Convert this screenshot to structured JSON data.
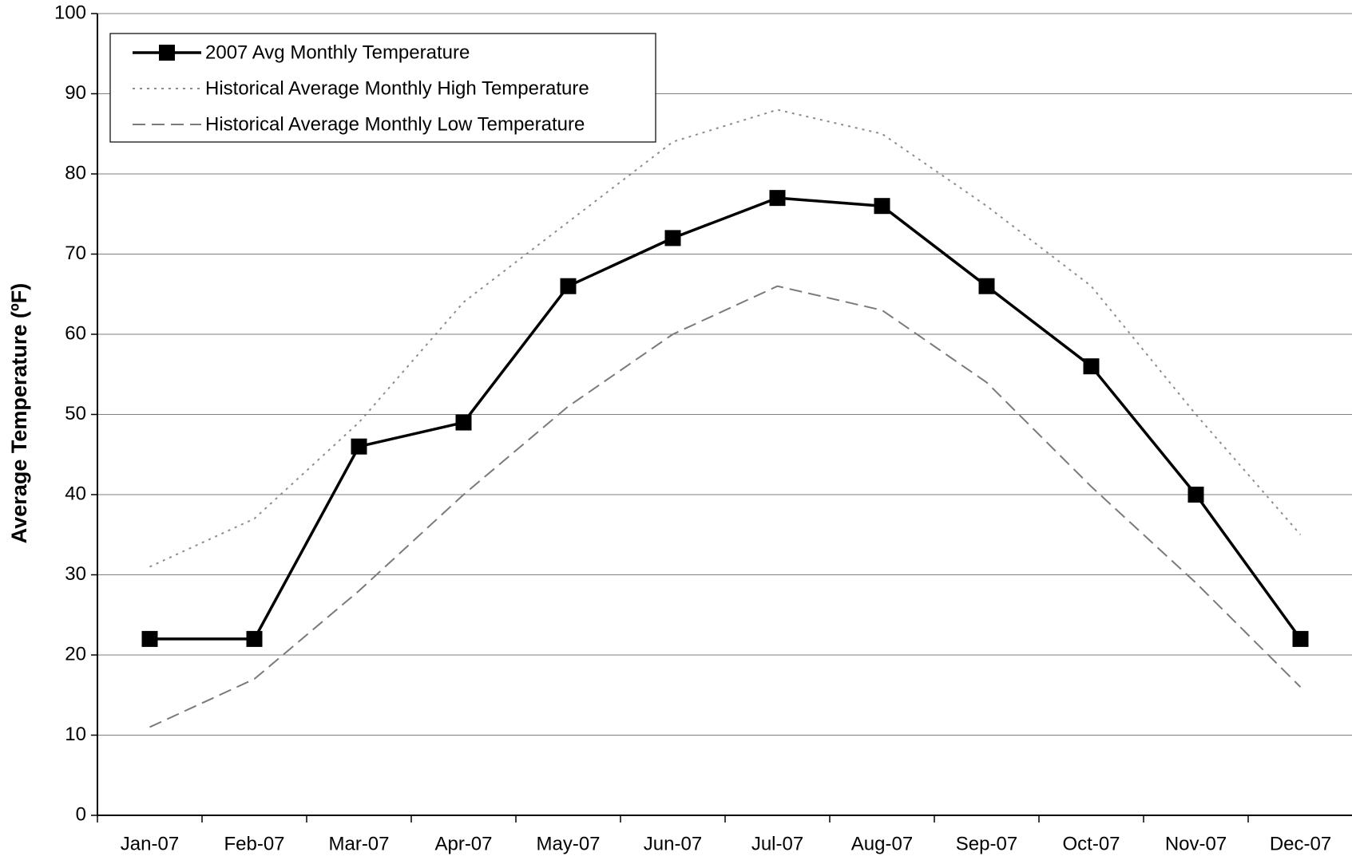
{
  "chart_data": {
    "type": "line",
    "y_label": "Average Temperature (ºF)",
    "categories": [
      "Jan-07",
      "Feb-07",
      "Mar-07",
      "Apr-07",
      "May-07",
      "Jun-07",
      "Jul-07",
      "Aug-07",
      "Sep-07",
      "Oct-07",
      "Nov-07",
      "Dec-07"
    ],
    "series": [
      {
        "name": "2007 Avg Monthly Temperature",
        "color": "#000000",
        "line_style": "solid",
        "marker": "square",
        "values": [
          22,
          22,
          46,
          49,
          66,
          72,
          77,
          76,
          66,
          56,
          40,
          22
        ]
      },
      {
        "name": "Historical Average Monthly High Temperature",
        "color": "#8c8c8c",
        "line_style": "dotted",
        "values": [
          31,
          37,
          49,
          64,
          74,
          84,
          88,
          85,
          76,
          66,
          50,
          35
        ]
      },
      {
        "name": "Historical Average Monthly Low Temperature",
        "color": "#7a7a7a",
        "line_style": "dashed",
        "values": [
          11,
          17,
          28,
          40,
          51,
          60,
          66,
          63,
          54,
          41,
          29,
          16
        ]
      }
    ],
    "ylim": [
      0,
      100
    ],
    "yticks": [
      0,
      10,
      20,
      30,
      40,
      50,
      60,
      70,
      80,
      90,
      100
    ],
    "grid": true,
    "legend": "upper left"
  }
}
